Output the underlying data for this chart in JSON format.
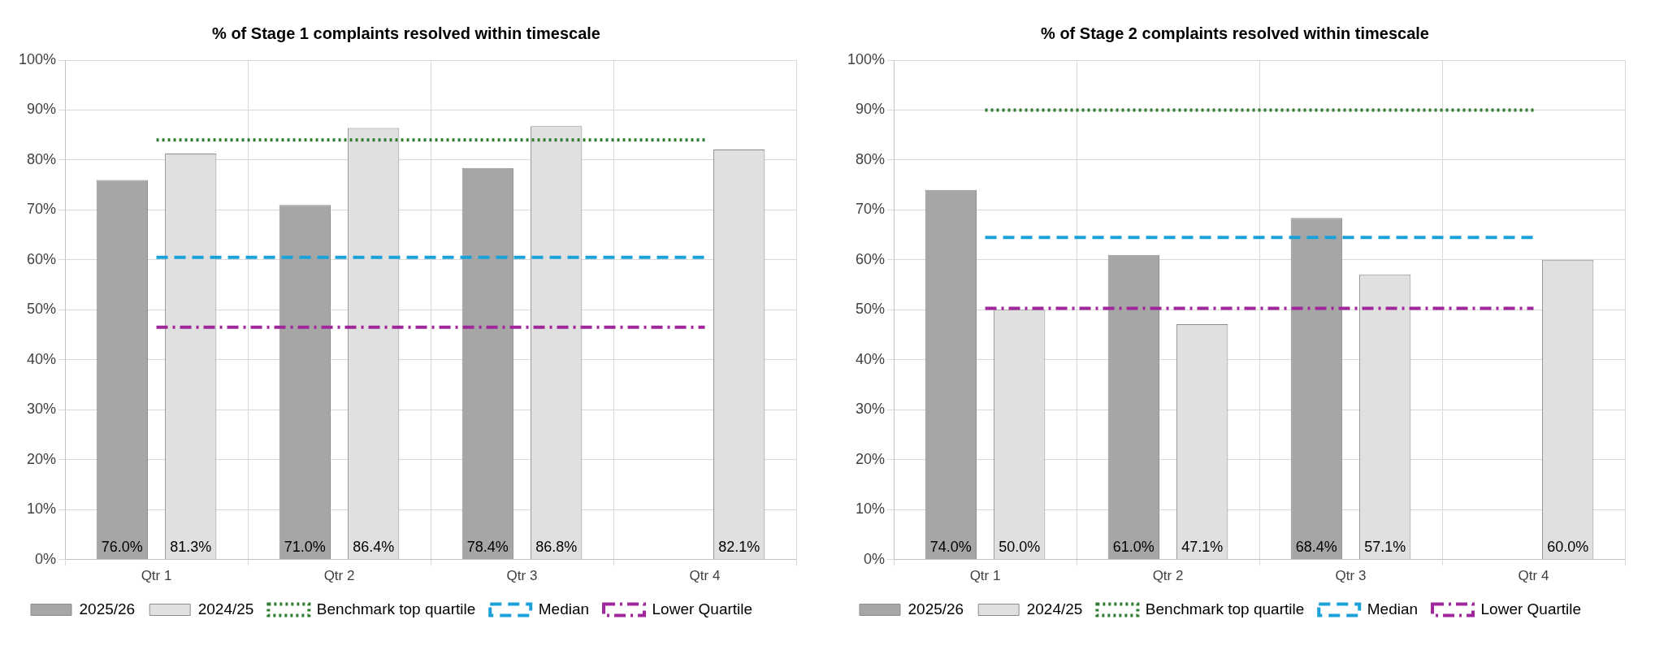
{
  "chart_data": [
    {
      "type": "bar",
      "title": "% of Stage 1 complaints resolved within timescale",
      "categories": [
        "Qtr 1",
        "Qtr 2",
        "Qtr 3",
        "Qtr 4"
      ],
      "series": [
        {
          "name": "2025/26",
          "color": "#a6a6a6",
          "values": [
            76.0,
            71.0,
            78.4,
            null
          ],
          "value_labels": [
            "76.0%",
            "71.0%",
            "78.4%",
            null
          ]
        },
        {
          "name": "2024/25",
          "color": "#e0e0e0",
          "values": [
            81.3,
            86.4,
            86.8,
            82.1
          ],
          "value_labels": [
            "81.3%",
            "86.4%",
            "86.8%",
            "82.1%"
          ]
        },
        {
          "name": "Benchmark top quartile",
          "type": "line",
          "color": "#2e7d32",
          "line_style": "dotted",
          "values": [
            84,
            84,
            84,
            84
          ]
        },
        {
          "name": "Median",
          "type": "line",
          "color": "#1ba1d9",
          "line_style": "dashed",
          "values": [
            60.5,
            60.5,
            60.5,
            60.5
          ]
        },
        {
          "name": "Lower Quartile",
          "type": "line",
          "color": "#a0279b",
          "line_style": "dashdot",
          "values": [
            46.5,
            46.5,
            46.5,
            46.5
          ]
        }
      ],
      "ylim": [
        0,
        100
      ],
      "yticks": [
        {
          "value": 0,
          "label": "0%"
        },
        {
          "value": 10,
          "label": "10%"
        },
        {
          "value": 20,
          "label": "20%"
        },
        {
          "value": 30,
          "label": "30%"
        },
        {
          "value": 40,
          "label": "40%"
        },
        {
          "value": 50,
          "label": "50%"
        },
        {
          "value": 60,
          "label": "60%"
        },
        {
          "value": 70,
          "label": "70%"
        },
        {
          "value": 80,
          "label": "80%"
        },
        {
          "value": 90,
          "label": "90%"
        },
        {
          "value": 100,
          "label": "100%"
        }
      ],
      "grid": true,
      "legend": "bottom",
      "marker": "none"
    },
    {
      "type": "bar",
      "title": "% of Stage 2 complaints resolved within timescale",
      "categories": [
        "Qtr 1",
        "Qtr 2",
        "Qtr 3",
        "Qtr 4"
      ],
      "series": [
        {
          "name": "2025/26",
          "color": "#a6a6a6",
          "values": [
            74.0,
            61.0,
            68.4,
            null
          ],
          "value_labels": [
            "74.0%",
            "61.0%",
            "68.4%",
            null
          ]
        },
        {
          "name": "2024/25",
          "color": "#e0e0e0",
          "values": [
            50.0,
            47.1,
            57.1,
            60.0
          ],
          "value_labels": [
            "50.0%",
            "47.1%",
            "57.1%",
            "60.0%"
          ]
        },
        {
          "name": "Benchmark top quartile",
          "type": "line",
          "color": "#2e7d32",
          "line_style": "dotted",
          "values": [
            90,
            90,
            90,
            90
          ]
        },
        {
          "name": "Median",
          "type": "line",
          "color": "#1ba1d9",
          "line_style": "dashed",
          "values": [
            64.5,
            64.5,
            64.5,
            64.5
          ]
        },
        {
          "name": "Lower Quartile",
          "type": "line",
          "color": "#a0279b",
          "line_style": "dashdot",
          "values": [
            50.3,
            50.3,
            50.3,
            50.3
          ]
        }
      ],
      "ylim": [
        0,
        100
      ],
      "yticks": [
        {
          "value": 0,
          "label": "0%"
        },
        {
          "value": 10,
          "label": "10%"
        },
        {
          "value": 20,
          "label": "20%"
        },
        {
          "value": 30,
          "label": "30%"
        },
        {
          "value": 40,
          "label": "40%"
        },
        {
          "value": 50,
          "label": "50%"
        },
        {
          "value": 60,
          "label": "60%"
        },
        {
          "value": 70,
          "label": "70%"
        },
        {
          "value": 80,
          "label": "80%"
        },
        {
          "value": 90,
          "label": "90%"
        },
        {
          "value": 100,
          "label": "100%"
        }
      ],
      "grid": true,
      "legend": "bottom",
      "marker": "none"
    }
  ]
}
